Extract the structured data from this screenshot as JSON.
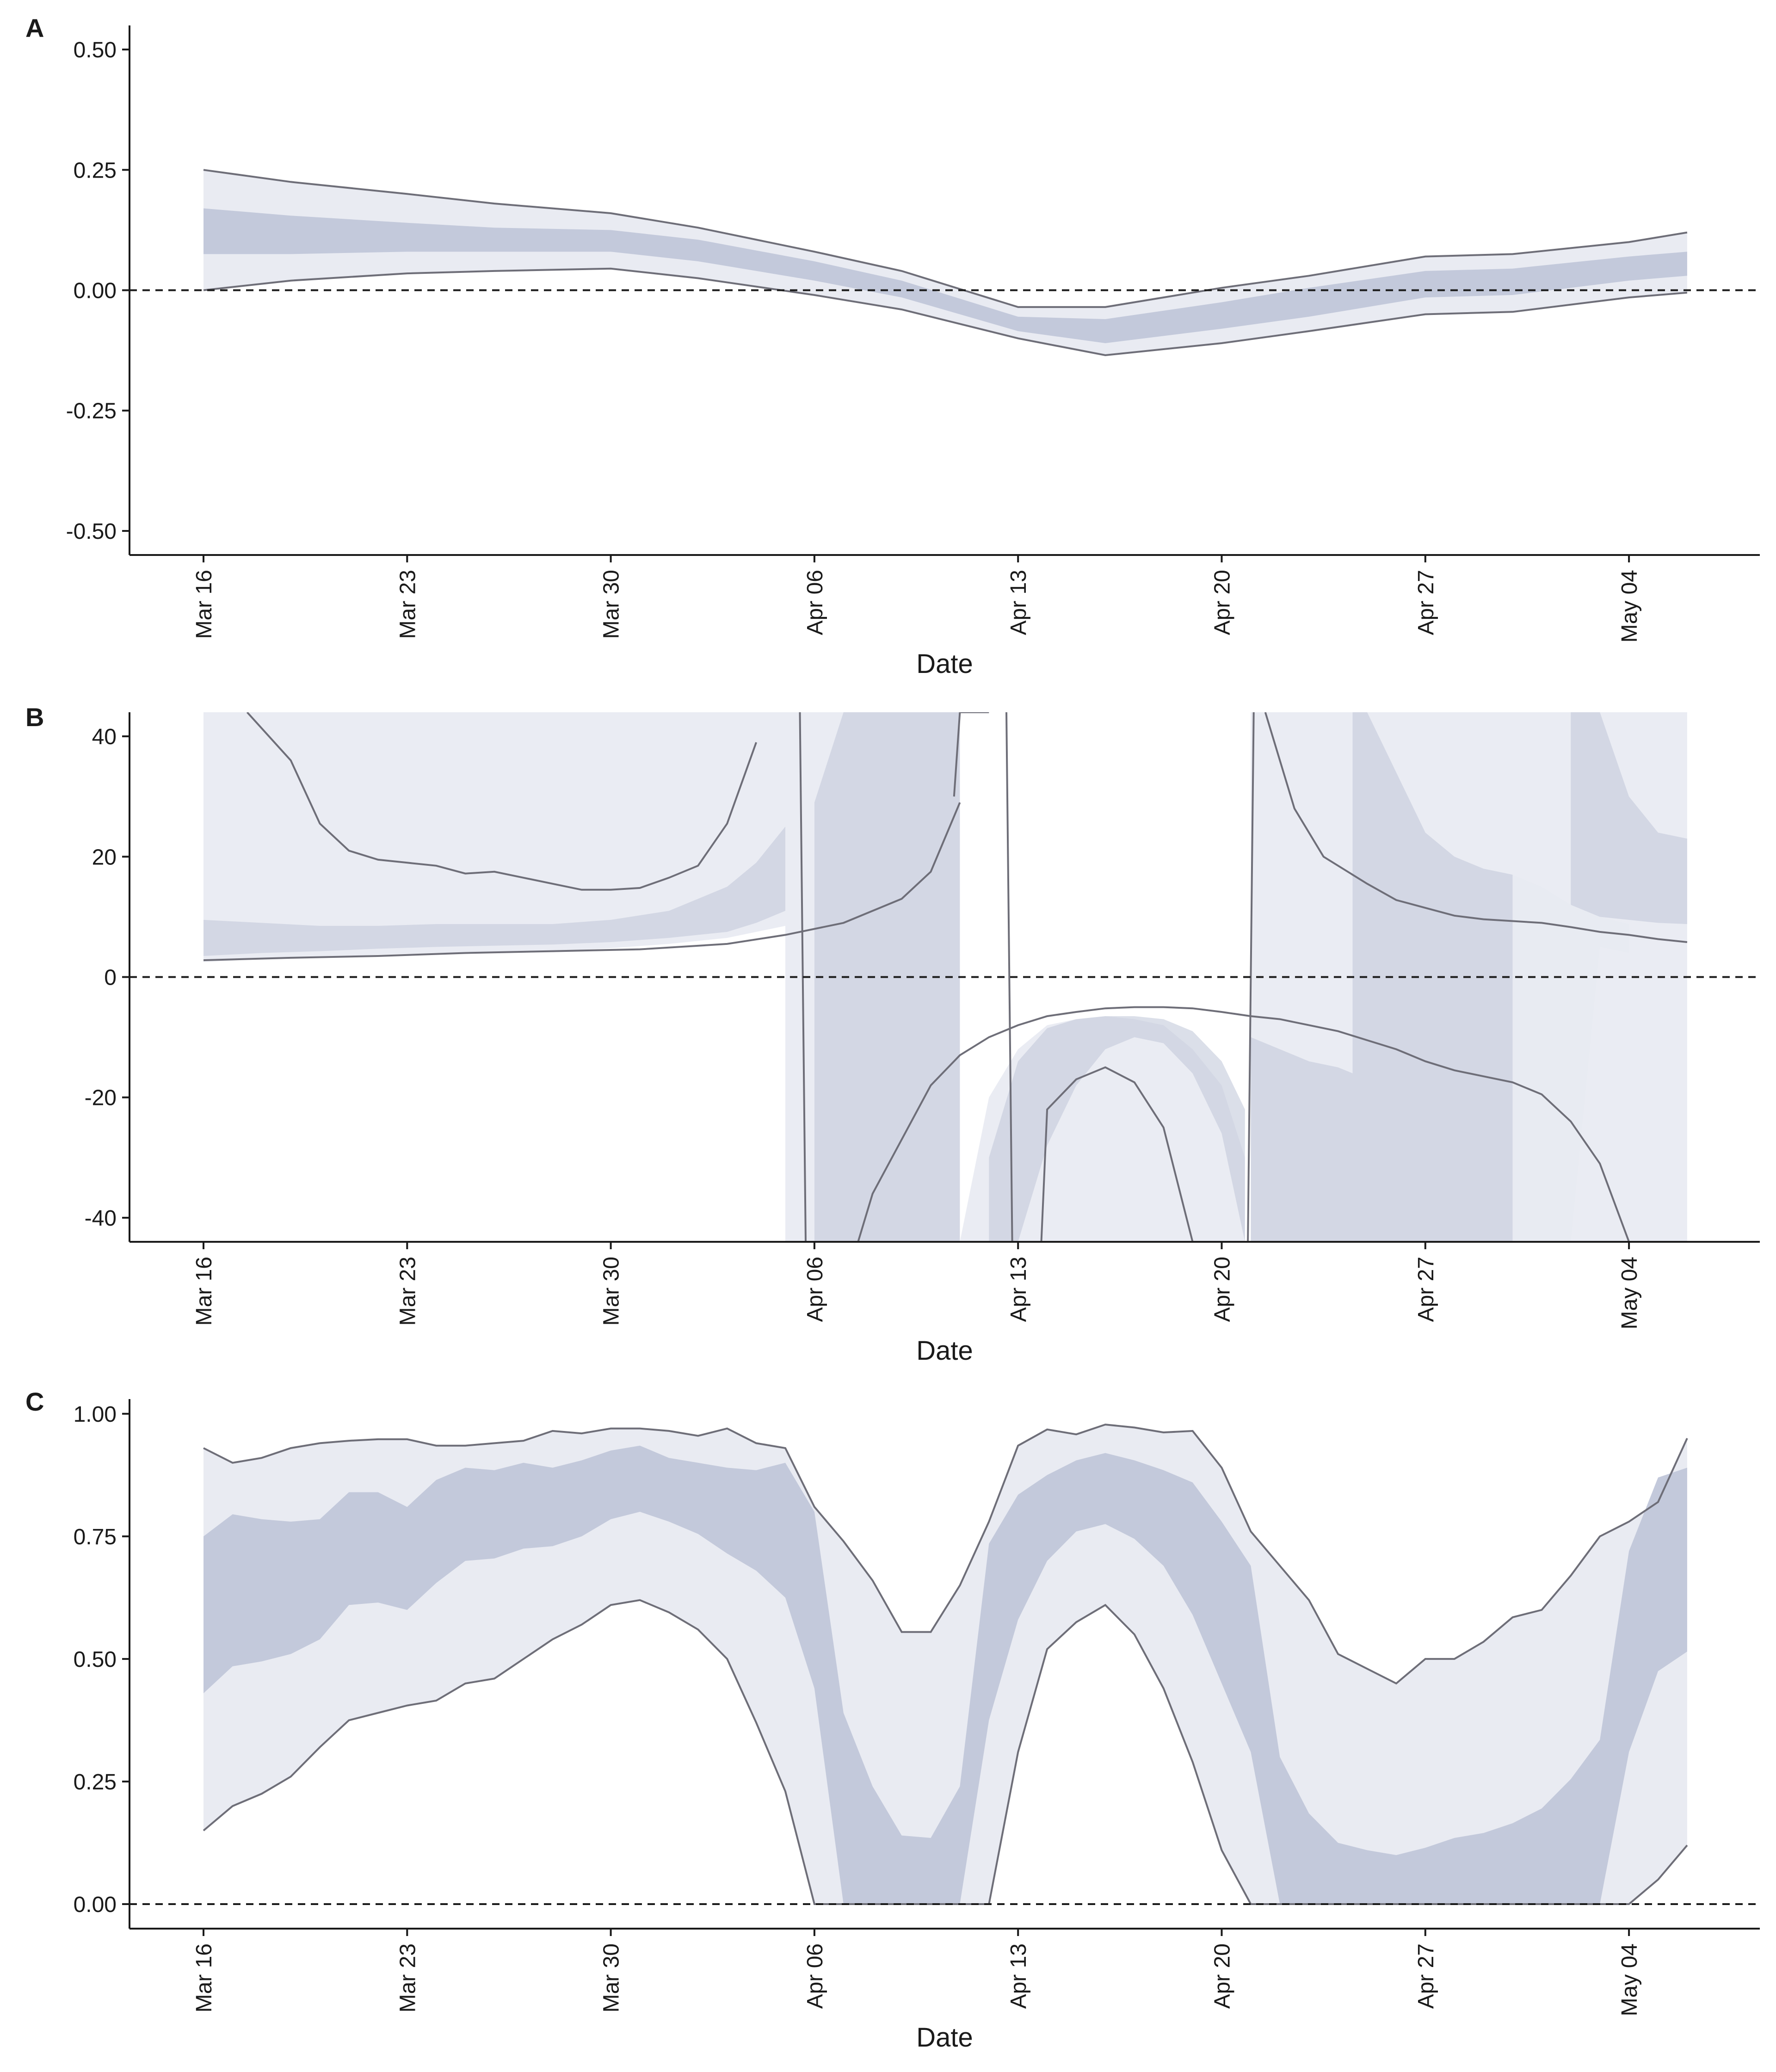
{
  "colors": {
    "outer_band": "#e9ebf2",
    "inner_band": "#c3c9db",
    "line": "#6e6e78",
    "axis": "#1a1a1a",
    "zero_line": "#1a1a1a"
  },
  "chart_data": [
    {
      "panel": "A",
      "type": "area",
      "xlabel": "Date",
      "x_ticks": [
        "Mar 16",
        "Mar 23",
        "Mar 30",
        "Apr 06",
        "Apr 13",
        "Apr 20",
        "Apr 27",
        "May 04"
      ],
      "y_ticks": [
        "-0.50",
        "-0.25",
        "0.00",
        "0.25",
        "0.50"
      ],
      "y_tick_values": [
        -0.5,
        -0.25,
        0,
        0.25,
        0.5
      ],
      "ylim": [
        -0.55,
        0.55
      ],
      "reference_line_y": 0,
      "x": [
        0,
        3,
        7,
        10,
        14,
        17,
        21,
        24,
        28,
        31,
        35,
        38,
        42,
        45,
        49,
        51
      ],
      "outer_upper": [
        0.25,
        0.225,
        0.2,
        0.18,
        0.16,
        0.13,
        0.08,
        0.04,
        -0.035,
        -0.035,
        0.005,
        0.03,
        0.07,
        0.075,
        0.1,
        0.12
      ],
      "outer_lower": [
        0.0,
        0.02,
        0.035,
        0.04,
        0.045,
        0.025,
        -0.01,
        -0.04,
        -0.1,
        -0.135,
        -0.11,
        -0.085,
        -0.05,
        -0.045,
        -0.015,
        -0.005
      ],
      "inner_upper": [
        0.17,
        0.155,
        0.14,
        0.13,
        0.125,
        0.105,
        0.06,
        0.02,
        -0.055,
        -0.06,
        -0.025,
        0.005,
        0.04,
        0.045,
        0.07,
        0.08
      ],
      "inner_lower": [
        0.075,
        0.075,
        0.08,
        0.08,
        0.08,
        0.06,
        0.02,
        -0.015,
        -0.085,
        -0.11,
        -0.08,
        -0.055,
        -0.015,
        -0.01,
        0.02,
        0.03
      ],
      "segments": [
        {
          "name": "outer_upper",
          "x": [
            0,
            3,
            7,
            10,
            14,
            17,
            21,
            24,
            28,
            31,
            35,
            38,
            42,
            45,
            49,
            51
          ],
          "y": [
            0.25,
            0.225,
            0.2,
            0.18,
            0.16,
            0.13,
            0.08,
            0.04,
            -0.035,
            -0.035,
            0.005,
            0.03,
            0.07,
            0.075,
            0.1,
            0.12
          ]
        },
        {
          "name": "outer_lower",
          "x": [
            0,
            3,
            7,
            10,
            14,
            17,
            21,
            24,
            28,
            31,
            35,
            38,
            42,
            45,
            49,
            51
          ],
          "y": [
            0.0,
            0.02,
            0.035,
            0.04,
            0.045,
            0.025,
            -0.01,
            -0.04,
            -0.1,
            -0.135,
            -0.11,
            -0.085,
            -0.05,
            -0.045,
            -0.015,
            -0.005
          ]
        }
      ]
    },
    {
      "panel": "B",
      "type": "area",
      "xlabel": "Date",
      "x_ticks": [
        "Mar 16",
        "Mar 23",
        "Mar 30",
        "Apr 06",
        "Apr 13",
        "Apr 20",
        "Apr 27",
        "May 04"
      ],
      "y_ticks": [
        "-40",
        "-20",
        "0",
        "20",
        "40"
      ],
      "y_tick_values": [
        -40,
        -20,
        0,
        20,
        40
      ],
      "ylim": [
        -44,
        44
      ],
      "reference_line_y": 0,
      "bands": [
        {
          "level": "outer",
          "x": [
            0,
            0,
            2,
            4,
            6,
            8,
            10,
            12,
            14,
            16,
            18,
            19,
            20,
            20
          ],
          "upper": [
            44,
            44,
            44,
            44,
            44,
            44,
            44,
            44,
            44,
            44,
            44,
            44,
            44,
            44
          ],
          "lower": [
            2.5,
            2.5,
            3,
            3.3,
            3.7,
            4.0,
            4.2,
            4.3,
            4.8,
            5.5,
            6.5,
            7.5,
            8.5,
            8.5
          ]
        },
        {
          "level": "inner",
          "x": [
            0,
            2,
            4,
            6,
            8,
            10,
            12,
            14,
            16,
            18,
            19,
            20
          ],
          "upper": [
            9.5,
            9,
            8.5,
            8.5,
            8.8,
            8.8,
            8.8,
            9.5,
            11,
            15,
            19,
            25
          ],
          "lower": [
            3.5,
            4.0,
            4.3,
            4.7,
            5.0,
            5.2,
            5.4,
            5.8,
            6.5,
            7.5,
            9,
            11
          ]
        },
        {
          "level": "outer",
          "x": [
            20,
            21,
            22,
            23,
            24,
            24.5,
            25,
            26,
            26
          ],
          "upper": [
            44,
            44,
            44,
            44,
            44,
            44,
            44,
            44,
            44
          ],
          "lower": [
            -44,
            -44,
            -44,
            -44,
            -44,
            -44,
            -44,
            -44,
            -44
          ]
        },
        {
          "level": "inner",
          "x": [
            21,
            22,
            22.6,
            24,
            24,
            25,
            25.5,
            26
          ],
          "upper": [
            29,
            44,
            44,
            44,
            44,
            44,
            44,
            44
          ],
          "lower": [
            -44,
            -44,
            -44,
            -44,
            -44,
            -44,
            -44,
            -44
          ]
        },
        {
          "level": "outer",
          "x": [
            26,
            27,
            28,
            29,
            30,
            31,
            32,
            33,
            34,
            35,
            35.8
          ],
          "upper": [
            -44,
            -20,
            -12,
            -8,
            -7,
            -6.5,
            -7,
            -8,
            -12,
            -18,
            -30
          ],
          "lower": [
            -44,
            -44,
            -44,
            -44,
            -44,
            -44,
            -44,
            -44,
            -44,
            -44,
            -44
          ]
        },
        {
          "level": "inner",
          "x": [
            27,
            28,
            29,
            30,
            31,
            32,
            33,
            34,
            35,
            35.8
          ],
          "upper": [
            -30,
            -14,
            -8.5,
            -7,
            -6.5,
            -6.5,
            -7,
            -9,
            -14,
            -22
          ],
          "lower": [
            -44,
            -44,
            -28,
            -18,
            -12,
            -10,
            -11,
            -16,
            -26,
            -44
          ]
        },
        {
          "level": "outer",
          "x": [
            36,
            37,
            38,
            39,
            40,
            41,
            42,
            43,
            44,
            45
          ],
          "upper": [
            44,
            44,
            44,
            44,
            44,
            44,
            44,
            44,
            44,
            44
          ],
          "lower": [
            -44,
            -44,
            -44,
            -44,
            -44,
            -44,
            -44,
            -44,
            -44,
            -44
          ]
        },
        {
          "level": "inner",
          "x": [
            36,
            37,
            38,
            39,
            39.5
          ],
          "upper": [
            -10,
            -12,
            -14,
            -15,
            -16
          ],
          "lower": [
            -44,
            -44,
            -44,
            -44,
            -44
          ]
        },
        {
          "level": "inner",
          "x": [
            39.5,
            40,
            41,
            42,
            43,
            44,
            45,
            46,
            47,
            48,
            49
          ],
          "upper": [
            44,
            44,
            34,
            24,
            20,
            18,
            17,
            15,
            12,
            10,
            8.8
          ],
          "lower": [
            -44,
            -44,
            -44,
            -44,
            -44,
            -44,
            -44,
            -44,
            -44,
            5,
            4
          ]
        },
        {
          "level": "outer",
          "x": [
            45,
            46,
            47,
            48,
            49,
            50,
            51
          ],
          "upper": [
            44,
            44,
            44,
            44,
            44,
            44,
            44
          ],
          "lower": [
            -44,
            -44,
            -44,
            -44,
            -44,
            -44,
            -44
          ]
        },
        {
          "level": "inner",
          "x": [
            47,
            48,
            49,
            50,
            51
          ],
          "upper": [
            44,
            44,
            30,
            24,
            23
          ],
          "lower": [
            12,
            10,
            9.5,
            9,
            8.8
          ]
        }
      ],
      "segments": [
        {
          "name": "upper_left",
          "x": [
            1.5,
            3,
            4,
            5,
            6,
            7,
            8,
            9,
            10,
            11,
            12,
            13,
            14,
            15,
            16,
            17,
            18,
            19
          ],
          "y": [
            44,
            36,
            25.5,
            21,
            19.5,
            19,
            18.5,
            17.2,
            17.5,
            16.5,
            15.5,
            14.5,
            14.5,
            14.8,
            16.5,
            18.5,
            25.5,
            39
          ]
        },
        {
          "name": "lower_left",
          "x": [
            0,
            3,
            6,
            9,
            12,
            15,
            18,
            20,
            22,
            23,
            24,
            25,
            26
          ],
          "y": [
            2.8,
            3.2,
            3.5,
            4.0,
            4.3,
            4.6,
            5.5,
            7,
            9,
            11,
            13,
            17.5,
            29
          ]
        },
        {
          "name": "steep_down",
          "x": [
            20.5,
            20.7
          ],
          "y": [
            44,
            -44
          ]
        },
        {
          "name": "lower_mid_arc",
          "x": [
            22.5,
            23,
            24,
            25,
            26,
            27,
            28,
            29,
            30,
            31,
            32,
            33,
            34,
            35,
            36,
            37,
            38
          ],
          "y": [
            -44,
            -36,
            -27,
            -18,
            -13,
            -10,
            -8,
            -6.5,
            -5.8,
            -5.2,
            -5.0,
            -5.0,
            -5.2,
            -5.8,
            -6.5,
            -7.0,
            -8.0
          ]
        },
        {
          "name": "right_descend",
          "x": [
            38,
            39,
            40,
            41,
            42,
            43,
            44,
            45,
            46,
            47,
            48,
            49
          ],
          "y": [
            -8,
            -9,
            -10.5,
            -12,
            -14,
            -15.5,
            -16.5,
            -17.5,
            -19.5,
            -24,
            -31,
            -44
          ]
        },
        {
          "name": "up_spike",
          "x": [
            25.8,
            26,
            26.5,
            27
          ],
          "y": [
            30,
            44,
            44,
            44
          ]
        },
        {
          "name": "inner_arc",
          "x": [
            28.8,
            29,
            30,
            31,
            32,
            33,
            34,
            35
          ],
          "y": [
            -44,
            -22,
            -17,
            -15,
            -17.5,
            -25,
            -44,
            -44
          ]
        },
        {
          "name": "steep_down_2",
          "x": [
            27.6,
            27.8
          ],
          "y": [
            44,
            -44
          ]
        },
        {
          "name": "steep_up",
          "x": [
            35.9,
            36.1
          ],
          "y": [
            -44,
            44
          ]
        },
        {
          "name": "upper_right",
          "x": [
            36.5,
            37.5,
            38.5,
            40,
            41,
            42,
            43,
            44,
            45,
            46,
            47,
            48,
            49,
            50,
            51
          ],
          "y": [
            44,
            28,
            20,
            15.5,
            12.8,
            11.5,
            10.2,
            9.6,
            9.3,
            9.0,
            8.3,
            7.5,
            7.0,
            6.3,
            5.8
          ]
        }
      ]
    },
    {
      "panel": "C",
      "type": "area",
      "xlabel": "Date",
      "x_ticks": [
        "Mar 16",
        "Mar 23",
        "Mar 30",
        "Apr 06",
        "Apr 13",
        "Apr 20",
        "Apr 27",
        "May 04"
      ],
      "y_ticks": [
        "0.00",
        "0.25",
        "0.50",
        "0.75",
        "1.00"
      ],
      "y_tick_values": [
        0,
        0.25,
        0.5,
        0.75,
        1.0
      ],
      "ylim": [
        -0.05,
        1.03
      ],
      "reference_line_y": 0,
      "x": [
        0,
        1,
        2,
        3,
        4,
        5,
        6,
        7,
        8,
        9,
        10,
        11,
        12,
        13,
        14,
        15,
        16,
        17,
        18,
        19,
        20,
        21,
        22,
        23,
        24,
        25,
        26,
        27,
        28,
        29,
        30,
        31,
        32,
        33,
        34,
        35,
        36,
        37,
        38,
        39,
        40,
        41,
        42,
        43,
        44,
        45,
        46,
        47,
        48,
        49,
        50,
        51
      ],
      "outer_upper": [
        0.93,
        0.9,
        0.91,
        0.93,
        0.94,
        0.945,
        0.948,
        0.948,
        0.935,
        0.935,
        0.94,
        0.945,
        0.965,
        0.96,
        0.97,
        0.97,
        0.965,
        0.955,
        0.97,
        0.94,
        0.93,
        0.81,
        0.74,
        0.66,
        0.555,
        0.555,
        0.65,
        0.78,
        0.935,
        0.968,
        0.958,
        0.978,
        0.972,
        0.962,
        0.965,
        0.89,
        0.76,
        0.69,
        0.62,
        0.51,
        0.48,
        0.45,
        0.5,
        0.5,
        0.535,
        0.585,
        0.6,
        0.67,
        0.75,
        0.78,
        0.82,
        0.95
      ],
      "outer_lower": [
        0.15,
        0.2,
        0.225,
        0.26,
        0.32,
        0.375,
        0.39,
        0.405,
        0.415,
        0.45,
        0.46,
        0.5,
        0.54,
        0.57,
        0.61,
        0.62,
        0.595,
        0.56,
        0.5,
        0.37,
        0.23,
        0.0,
        0.0,
        0.0,
        0.0,
        0.0,
        0.0,
        0.0,
        0.31,
        0.52,
        0.575,
        0.61,
        0.55,
        0.44,
        0.29,
        0.11,
        0.0,
        0.0,
        0.0,
        0.0,
        0.0,
        0.0,
        0.0,
        0.0,
        0.0,
        0.0,
        0.0,
        0.0,
        0.0,
        0.0,
        0.05,
        0.12
      ],
      "inner_upper": [
        0.75,
        0.795,
        0.785,
        0.78,
        0.785,
        0.84,
        0.84,
        0.81,
        0.865,
        0.89,
        0.885,
        0.9,
        0.89,
        0.905,
        0.925,
        0.935,
        0.91,
        0.9,
        0.89,
        0.885,
        0.9,
        0.8,
        0.39,
        0.24,
        0.14,
        0.135,
        0.24,
        0.735,
        0.835,
        0.875,
        0.905,
        0.92,
        0.905,
        0.885,
        0.86,
        0.78,
        0.69,
        0.3,
        0.185,
        0.125,
        0.11,
        0.1,
        0.115,
        0.135,
        0.145,
        0.165,
        0.195,
        0.255,
        0.335,
        0.72,
        0.87,
        0.89
      ],
      "inner_lower": [
        0.43,
        0.485,
        0.495,
        0.51,
        0.54,
        0.61,
        0.615,
        0.6,
        0.655,
        0.7,
        0.705,
        0.725,
        0.73,
        0.75,
        0.785,
        0.8,
        0.78,
        0.755,
        0.715,
        0.68,
        0.625,
        0.44,
        0.0,
        0.0,
        0.0,
        0.0,
        0.0,
        0.375,
        0.58,
        0.7,
        0.76,
        0.775,
        0.745,
        0.69,
        0.59,
        0.45,
        0.31,
        0.0,
        0.0,
        0.0,
        0.0,
        0.0,
        0.0,
        0.0,
        0.0,
        0.0,
        0.0,
        0.0,
        0.0,
        0.31,
        0.475,
        0.515
      ]
    }
  ]
}
